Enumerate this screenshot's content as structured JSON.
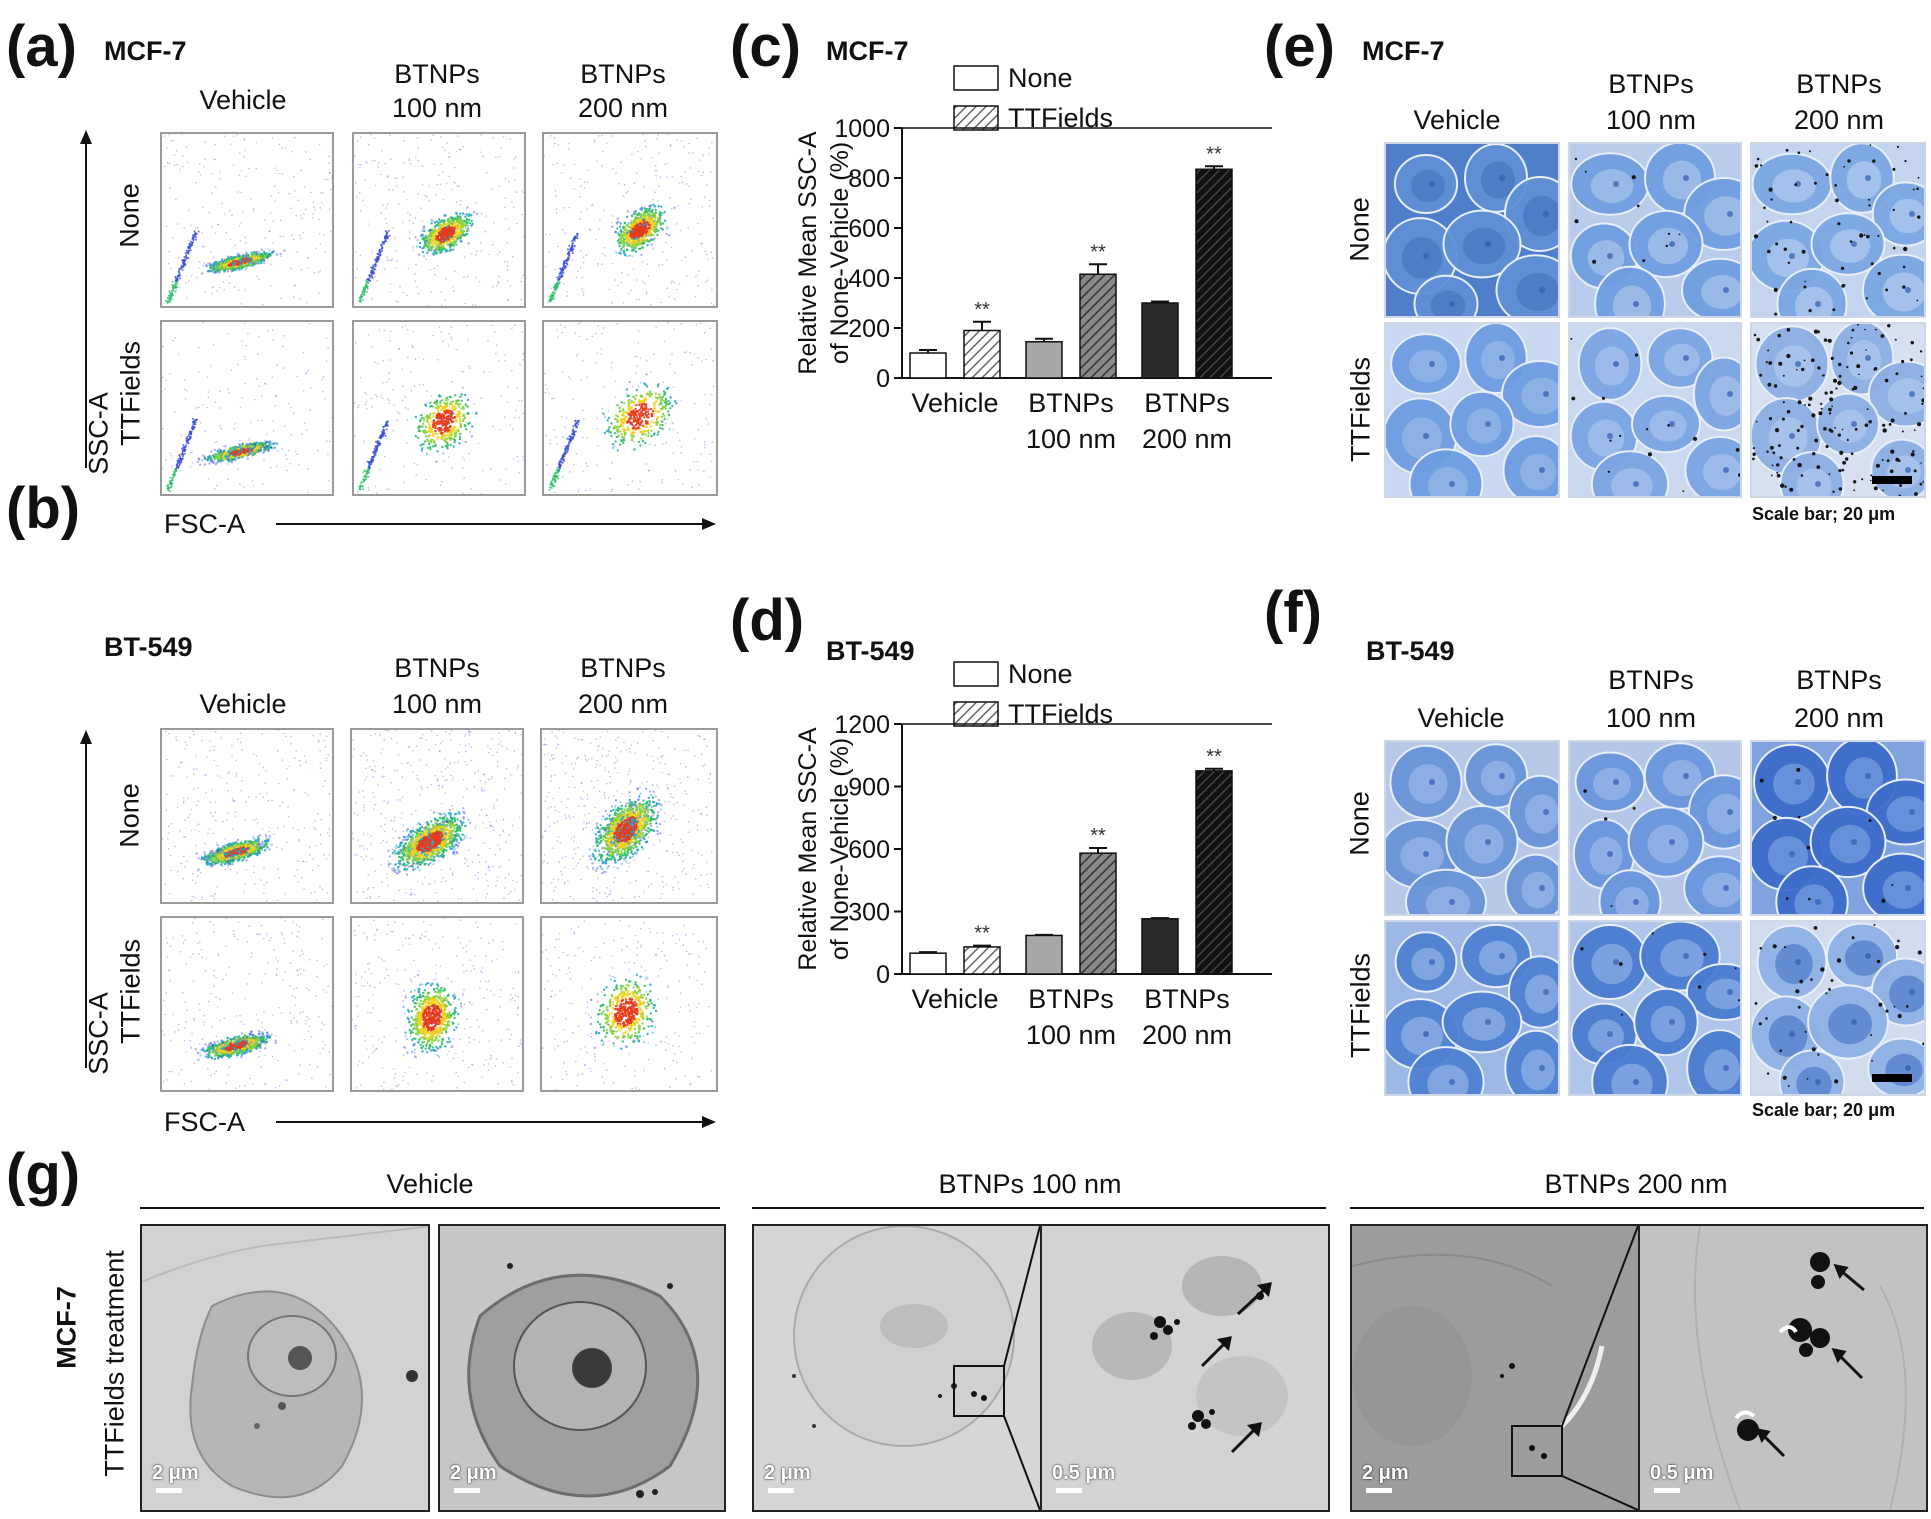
{
  "panels": {
    "a": {
      "label": "(a)",
      "cell_line": "MCF-7"
    },
    "b": {
      "label": "(b)",
      "cell_line": "BT-549"
    },
    "c": {
      "label": "(c)",
      "cell_line": "MCF-7"
    },
    "d": {
      "label": "(d)",
      "cell_line": "BT-549"
    },
    "e": {
      "label": "(e)",
      "cell_line": "MCF-7"
    },
    "f": {
      "label": "(f)",
      "cell_line": "BT-549"
    },
    "g": {
      "label": "(g)",
      "cell_line": "MCF-7",
      "treatment": "TTFields treatment"
    }
  },
  "columns": {
    "vehicle": "Vehicle",
    "btnps100_line1": "BTNPs",
    "btnps100_line2": "100 nm",
    "btnps200_line1": "BTNPs",
    "btnps200_line2": "200 nm"
  },
  "rows": {
    "none": "None",
    "ttfields": "TTFields"
  },
  "flow_axes": {
    "x": "FSC-A",
    "y": "SSC-A"
  },
  "scale_bar_text": "Scale bar; 20 μm",
  "tem": {
    "group_vehicle": "Vehicle",
    "group_100": "BTNPs  100 nm",
    "group_200": "BTNPs  200 nm",
    "scale_2um": "2 μm",
    "scale_05um": "0.5 μm"
  },
  "chart_data": [
    {
      "type": "bar",
      "panel": "c",
      "ylabel_line1": "Relative  Mean SSC-A",
      "ylabel_line2": "of None-Vehicle (%)",
      "ylim": [
        0,
        1000
      ],
      "yticks": [
        "0",
        "200",
        "400",
        "600",
        "800",
        "1000"
      ],
      "categories": [
        "Vehicle",
        "BTNPs 100 nm",
        "BTNPs 200 nm"
      ],
      "category_line1": [
        "Vehicle",
        "BTNPs",
        "BTNPs"
      ],
      "category_line2": [
        "",
        "100 nm",
        "200 nm"
      ],
      "legend": [
        "None",
        "TTFields"
      ],
      "legend_position": "top",
      "significance": "**",
      "series": [
        {
          "name": "None",
          "values": [
            100,
            145,
            300
          ],
          "errors": [
            12,
            12,
            6
          ]
        },
        {
          "name": "TTFields",
          "values": [
            190,
            415,
            835
          ],
          "errors": [
            35,
            40,
            12
          ]
        }
      ],
      "significant": [
        [
          false,
          false,
          false
        ],
        [
          true,
          true,
          true
        ]
      ]
    },
    {
      "type": "bar",
      "panel": "d",
      "ylabel_line1": "Relative  Mean SSC-A",
      "ylabel_line2": "of None-Vehicle (%)",
      "ylim": [
        0,
        1200
      ],
      "yticks": [
        "0",
        "300",
        "600",
        "900",
        "1200"
      ],
      "categories": [
        "Vehicle",
        "BTNPs 100 nm",
        "BTNPs 200 nm"
      ],
      "category_line1": [
        "Vehicle",
        "BTNPs",
        "BTNPs"
      ],
      "category_line2": [
        "",
        "100 nm",
        "200 nm"
      ],
      "legend": [
        "None",
        "TTFields"
      ],
      "legend_position": "top",
      "significance": "**",
      "series": [
        {
          "name": "None",
          "values": [
            100,
            185,
            265
          ],
          "errors": [
            5,
            3,
            3
          ]
        },
        {
          "name": "TTFields",
          "values": [
            130,
            580,
            975
          ],
          "errors": [
            6,
            25,
            10
          ]
        }
      ],
      "significant": [
        [
          false,
          false,
          false
        ],
        [
          true,
          true,
          true
        ]
      ]
    }
  ]
}
